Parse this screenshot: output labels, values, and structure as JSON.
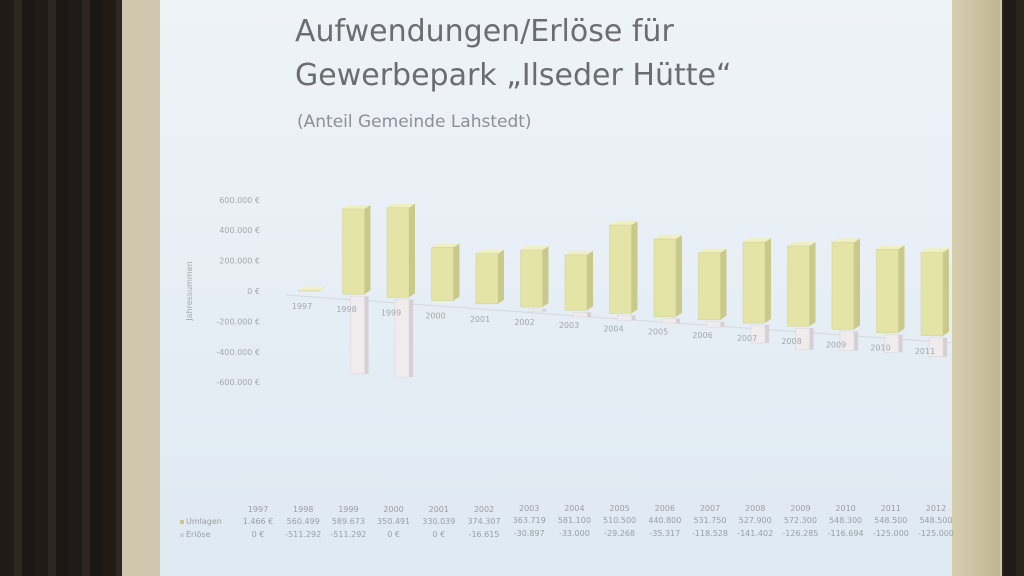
{
  "slide": {
    "title_line1": "Aufwendungen/Erlöse für",
    "title_line2": "Gewerbepark „Ilseder Hütte“",
    "subtitle": "(Anteil Gemeinde Lahstedt)"
  },
  "colors": {
    "umlagen": "#e4e4a6",
    "umlagen_side": "#c9c98a",
    "erloese": "#f0ecee",
    "erloese_side": "#d6d0d4"
  },
  "chart_data": {
    "type": "bar",
    "title": "Aufwendungen/Erlöse für Gewerbepark „Ilseder Hütte“",
    "subtitle": "(Anteil Gemeinde Lahstedt)",
    "ylabel": "Jahressummen",
    "ylim": [
      -600000,
      600000
    ],
    "y_ticks": [
      600000,
      400000,
      200000,
      0,
      -200000,
      -400000,
      -600000
    ],
    "y_tick_labels": [
      "600.000 €",
      "400.000 €",
      "200.000 €",
      "0 €",
      "-200.000 €",
      "-400.000 €",
      "-600.000 €"
    ],
    "categories": [
      "1997",
      "1998",
      "1999",
      "2000",
      "2001",
      "2002",
      "2003",
      "2004",
      "2005",
      "2006",
      "2007",
      "2008",
      "2009",
      "2010",
      "2011",
      "2012"
    ],
    "series": [
      {
        "name": "Umlagen",
        "values": [
          1466,
          560499,
          589673,
          350491,
          330039,
          374307,
          363719,
          581100,
          510500,
          440800,
          531750,
          527900,
          572300,
          548300,
          548500,
          548500
        ],
        "labels": [
          "1.466 €",
          "560.499",
          "589.673",
          "350.491",
          "330.039",
          "374.307",
          "363.719",
          "581.100",
          "510.500",
          "440.800",
          "531.750",
          "527.900",
          "572.300",
          "548.300",
          "548.500",
          "548.500"
        ]
      },
      {
        "name": "Erlöse",
        "values": [
          0,
          -511292,
          -511292,
          0,
          0,
          -16615,
          -30897,
          -33000,
          -29268,
          -35317,
          -118528,
          -141402,
          -126285,
          -116694,
          -125000,
          -125000
        ],
        "labels": [
          "0 €",
          "-511.292",
          "-511.292",
          "0 €",
          "0 €",
          "-16.615",
          "-30.897",
          "-33.000",
          "-29.268",
          "-35.317",
          "-118.528",
          "-141.402",
          "-126.285",
          "-116.694",
          "-125.000",
          "-125.000"
        ]
      }
    ],
    "grid": false,
    "legend": "table-below"
  }
}
